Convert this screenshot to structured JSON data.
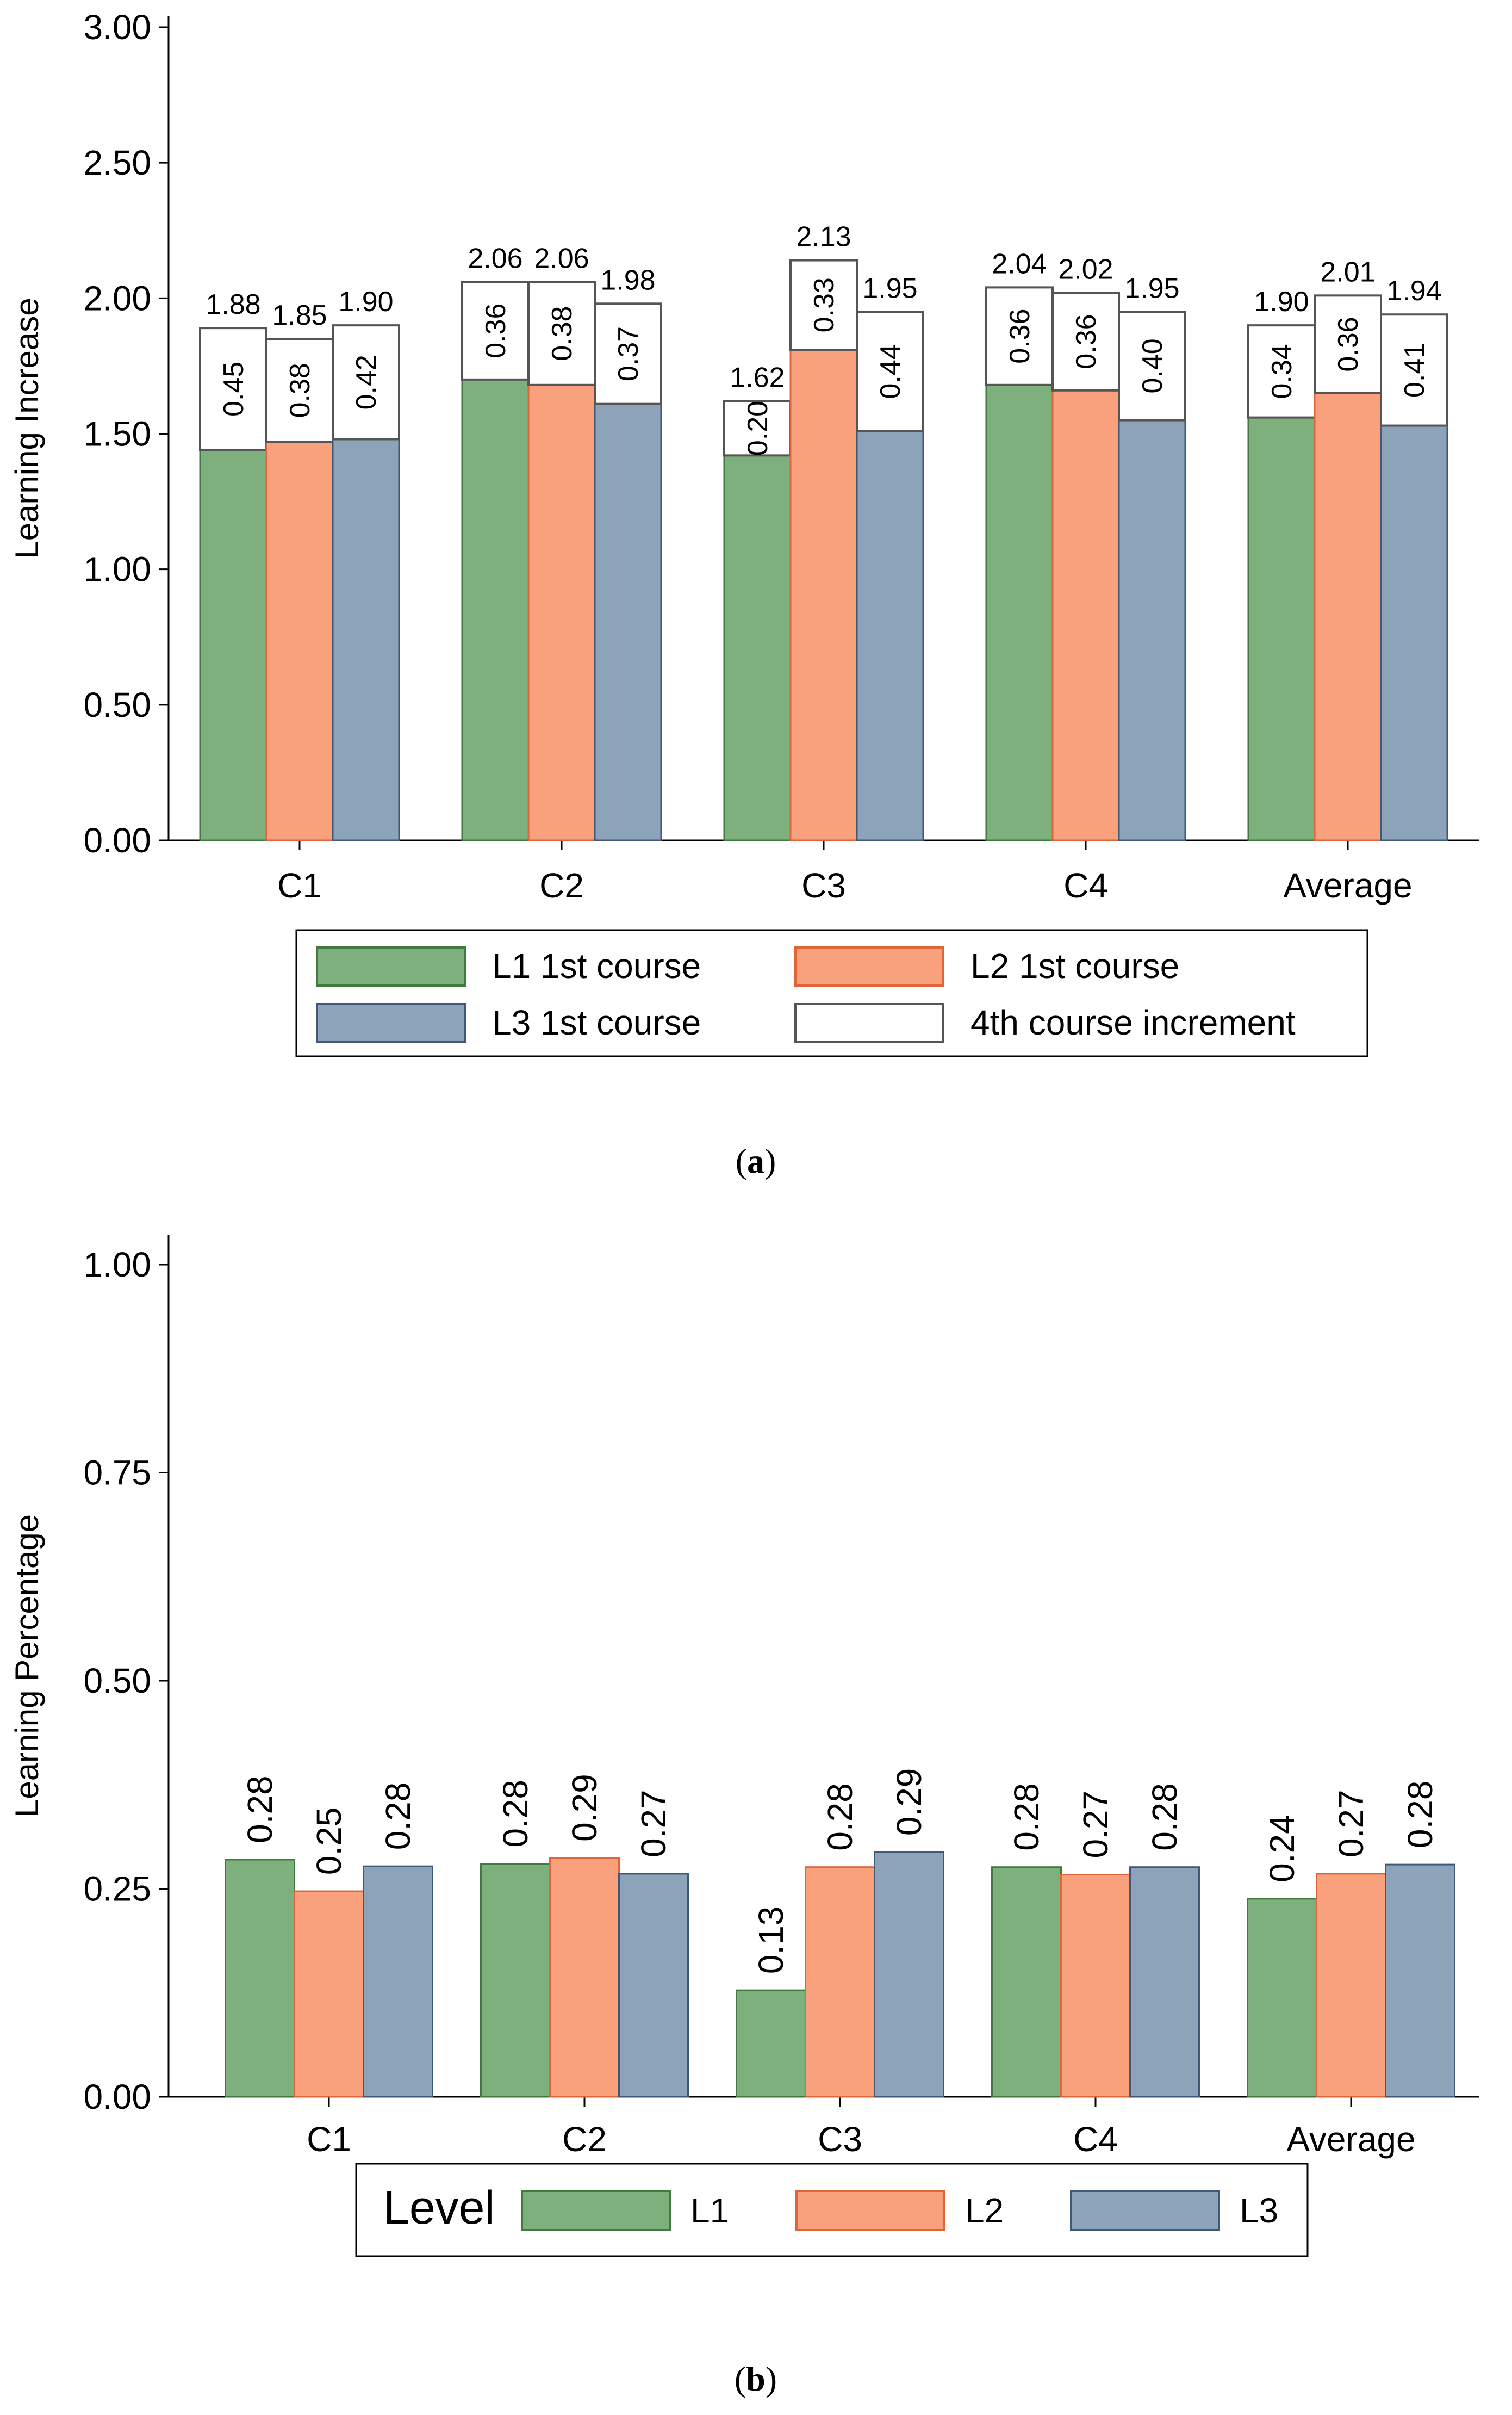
{
  "colors": {
    "L1": "#7eb07e",
    "L2": "#f9a07c",
    "L3": "#8ca3b9",
    "L1_edge": "#3f7a3f",
    "L2_edge": "#e0643a",
    "L3_edge": "#3f5a78",
    "increment_fill": "#ffffff",
    "increment_edge": "#555555",
    "axis": "#000000"
  },
  "chart_data": [
    {
      "id": "a",
      "type": "bar",
      "stacked": true,
      "caption": "(a)",
      "caption_letter": "a",
      "ylabel": "Learning Increase",
      "ylim": [
        0,
        3
      ],
      "yticks": [
        "0.00",
        "0.50",
        "1.00",
        "1.50",
        "2.00",
        "2.50",
        "3.00"
      ],
      "categories": [
        "C1",
        "C2",
        "C3",
        "C4",
        "Average"
      ],
      "series": [
        {
          "name": "L1",
          "base": [
            1.44,
            1.7,
            1.42,
            1.68,
            1.56
          ],
          "increment": [
            0.45,
            0.36,
            0.2,
            0.36,
            0.34
          ],
          "total_labels": [
            "1.88",
            "2.06",
            "1.62",
            "2.04",
            "1.90"
          ],
          "increment_labels": [
            "0.45",
            "0.36",
            "0.20",
            "0.36",
            "0.34"
          ]
        },
        {
          "name": "L2",
          "base": [
            1.47,
            1.68,
            1.81,
            1.66,
            1.65
          ],
          "increment": [
            0.38,
            0.38,
            0.33,
            0.36,
            0.36
          ],
          "total_labels": [
            "1.85",
            "2.06",
            "2.13",
            "2.02",
            "2.01"
          ],
          "increment_labels": [
            "0.38",
            "0.38",
            "0.33",
            "0.36",
            "0.36"
          ]
        },
        {
          "name": "L3",
          "base": [
            1.48,
            1.61,
            1.51,
            1.55,
            1.53
          ],
          "increment": [
            0.42,
            0.37,
            0.44,
            0.4,
            0.41
          ],
          "total_labels": [
            "1.90",
            "1.98",
            "1.95",
            "1.95",
            "1.94"
          ],
          "increment_labels": [
            "0.42",
            "0.37",
            "0.44",
            "0.40",
            "0.41"
          ]
        }
      ],
      "legend": {
        "position": "bottom",
        "entries": [
          "L1 1st course",
          "L2 1st course",
          "L3 1st course",
          "4th course increment"
        ]
      }
    },
    {
      "id": "b",
      "type": "bar",
      "stacked": false,
      "caption": "(b)",
      "caption_letter": "b",
      "ylabel": "Learning Percentage",
      "ylim": [
        0,
        1
      ],
      "yticks": [
        "0.00",
        "0.25",
        "0.50",
        "0.75",
        "1.00"
      ],
      "categories": [
        "C1",
        "C2",
        "C3",
        "C4",
        "Average"
      ],
      "series": [
        {
          "name": "L1",
          "values": [
            0.285,
            0.28,
            0.128,
            0.276,
            0.238
          ],
          "labels": [
            "0.28",
            "0.28",
            "0.13",
            "0.28",
            "0.24"
          ]
        },
        {
          "name": "L2",
          "values": [
            0.247,
            0.287,
            0.276,
            0.267,
            0.268
          ],
          "labels": [
            "0.25",
            "0.29",
            "0.28",
            "0.27",
            "0.27"
          ]
        },
        {
          "name": "L3",
          "values": [
            0.277,
            0.268,
            0.294,
            0.276,
            0.279
          ],
          "labels": [
            "0.28",
            "0.27",
            "0.29",
            "0.28",
            "0.28"
          ]
        }
      ],
      "legend": {
        "position": "bottom",
        "title": "Level",
        "entries": [
          "L1",
          "L2",
          "L3"
        ]
      }
    }
  ]
}
